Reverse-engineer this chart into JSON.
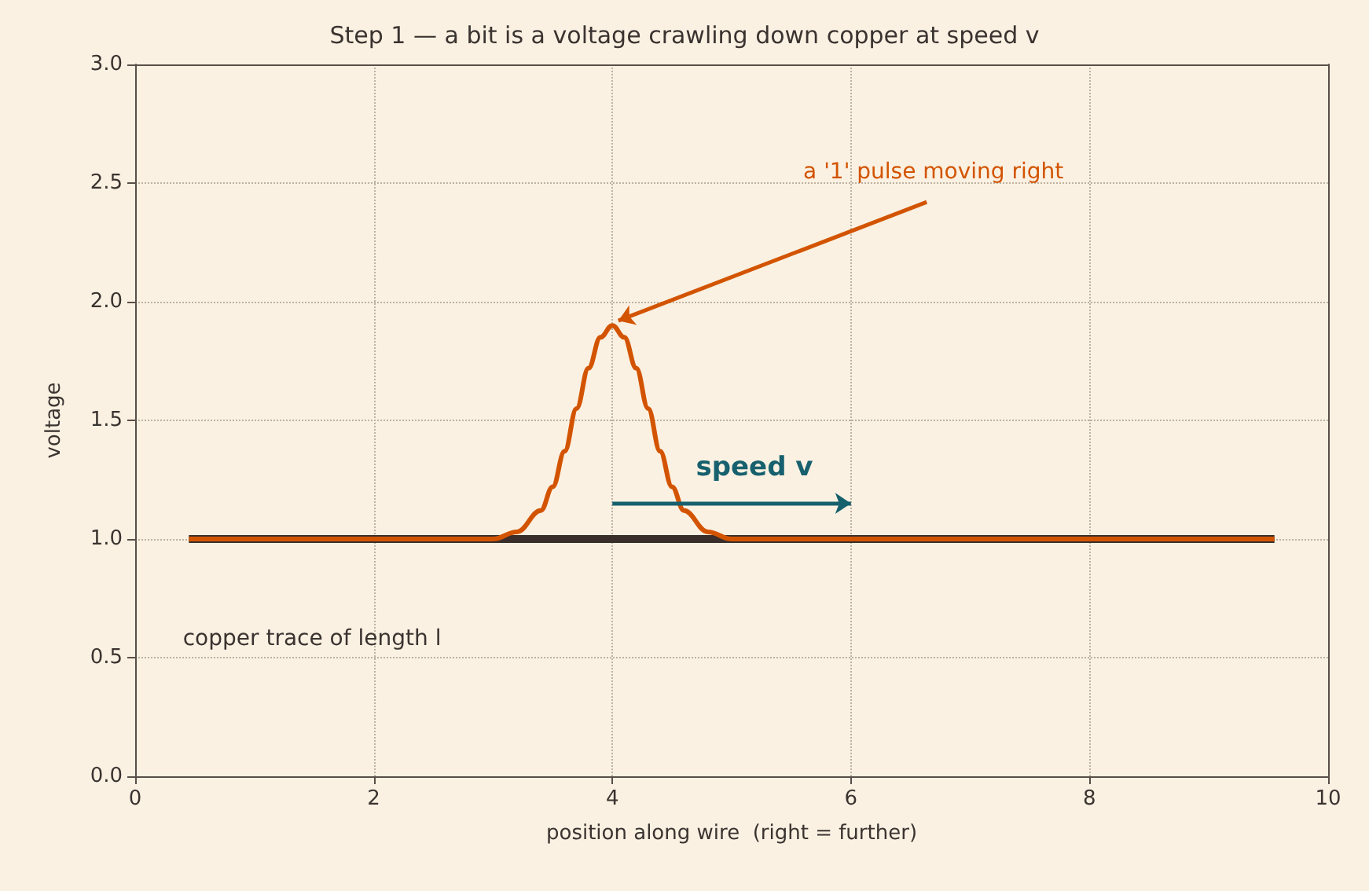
{
  "chart_data": {
    "type": "line",
    "title": "Step 1 — a bit is a voltage crawling down copper at speed v",
    "xlabel": "position along wire  (right = further)",
    "ylabel": "voltage",
    "xlim": [
      0,
      10
    ],
    "xticks": [
      0,
      2,
      4,
      6,
      8,
      10
    ],
    "ylim": [
      0,
      3
    ],
    "yticks": [
      {
        "value": 0,
        "label": "0.0"
      },
      {
        "value": 0.5,
        "label": "0.5"
      },
      {
        "value": 1,
        "label": "1.0"
      },
      {
        "value": 1.5,
        "label": "1.5"
      },
      {
        "value": 2,
        "label": "2.0"
      },
      {
        "value": 2.5,
        "label": "2.5"
      },
      {
        "value": 3,
        "label": "3.0"
      }
    ],
    "grid": true,
    "marker": "none",
    "line_style": "solid",
    "series": [
      {
        "color": "#3a2e2a",
        "x": [
          0.45,
          9.55
        ],
        "values": [
          1,
          1
        ]
      },
      {
        "color": "#d35400",
        "x": [
          0.45,
          2.5,
          3.0,
          3.2,
          3.4,
          3.5,
          3.6,
          3.7,
          3.8,
          3.9,
          4.0,
          4.1,
          4.2,
          4.3,
          4.4,
          4.5,
          4.6,
          4.8,
          5.0,
          5.5,
          9.55
        ],
        "values": [
          1,
          1,
          1,
          1.03,
          1.12,
          1.22,
          1.37,
          1.55,
          1.72,
          1.85,
          1.9,
          1.85,
          1.72,
          1.55,
          1.37,
          1.22,
          1.12,
          1.03,
          1,
          1,
          1
        ]
      }
    ],
    "annotations": [
      {
        "text": "a '1' pulse moving right",
        "x": 4,
        "y": 1.9
      },
      "speed v",
      "copper trace of length l"
    ]
  }
}
